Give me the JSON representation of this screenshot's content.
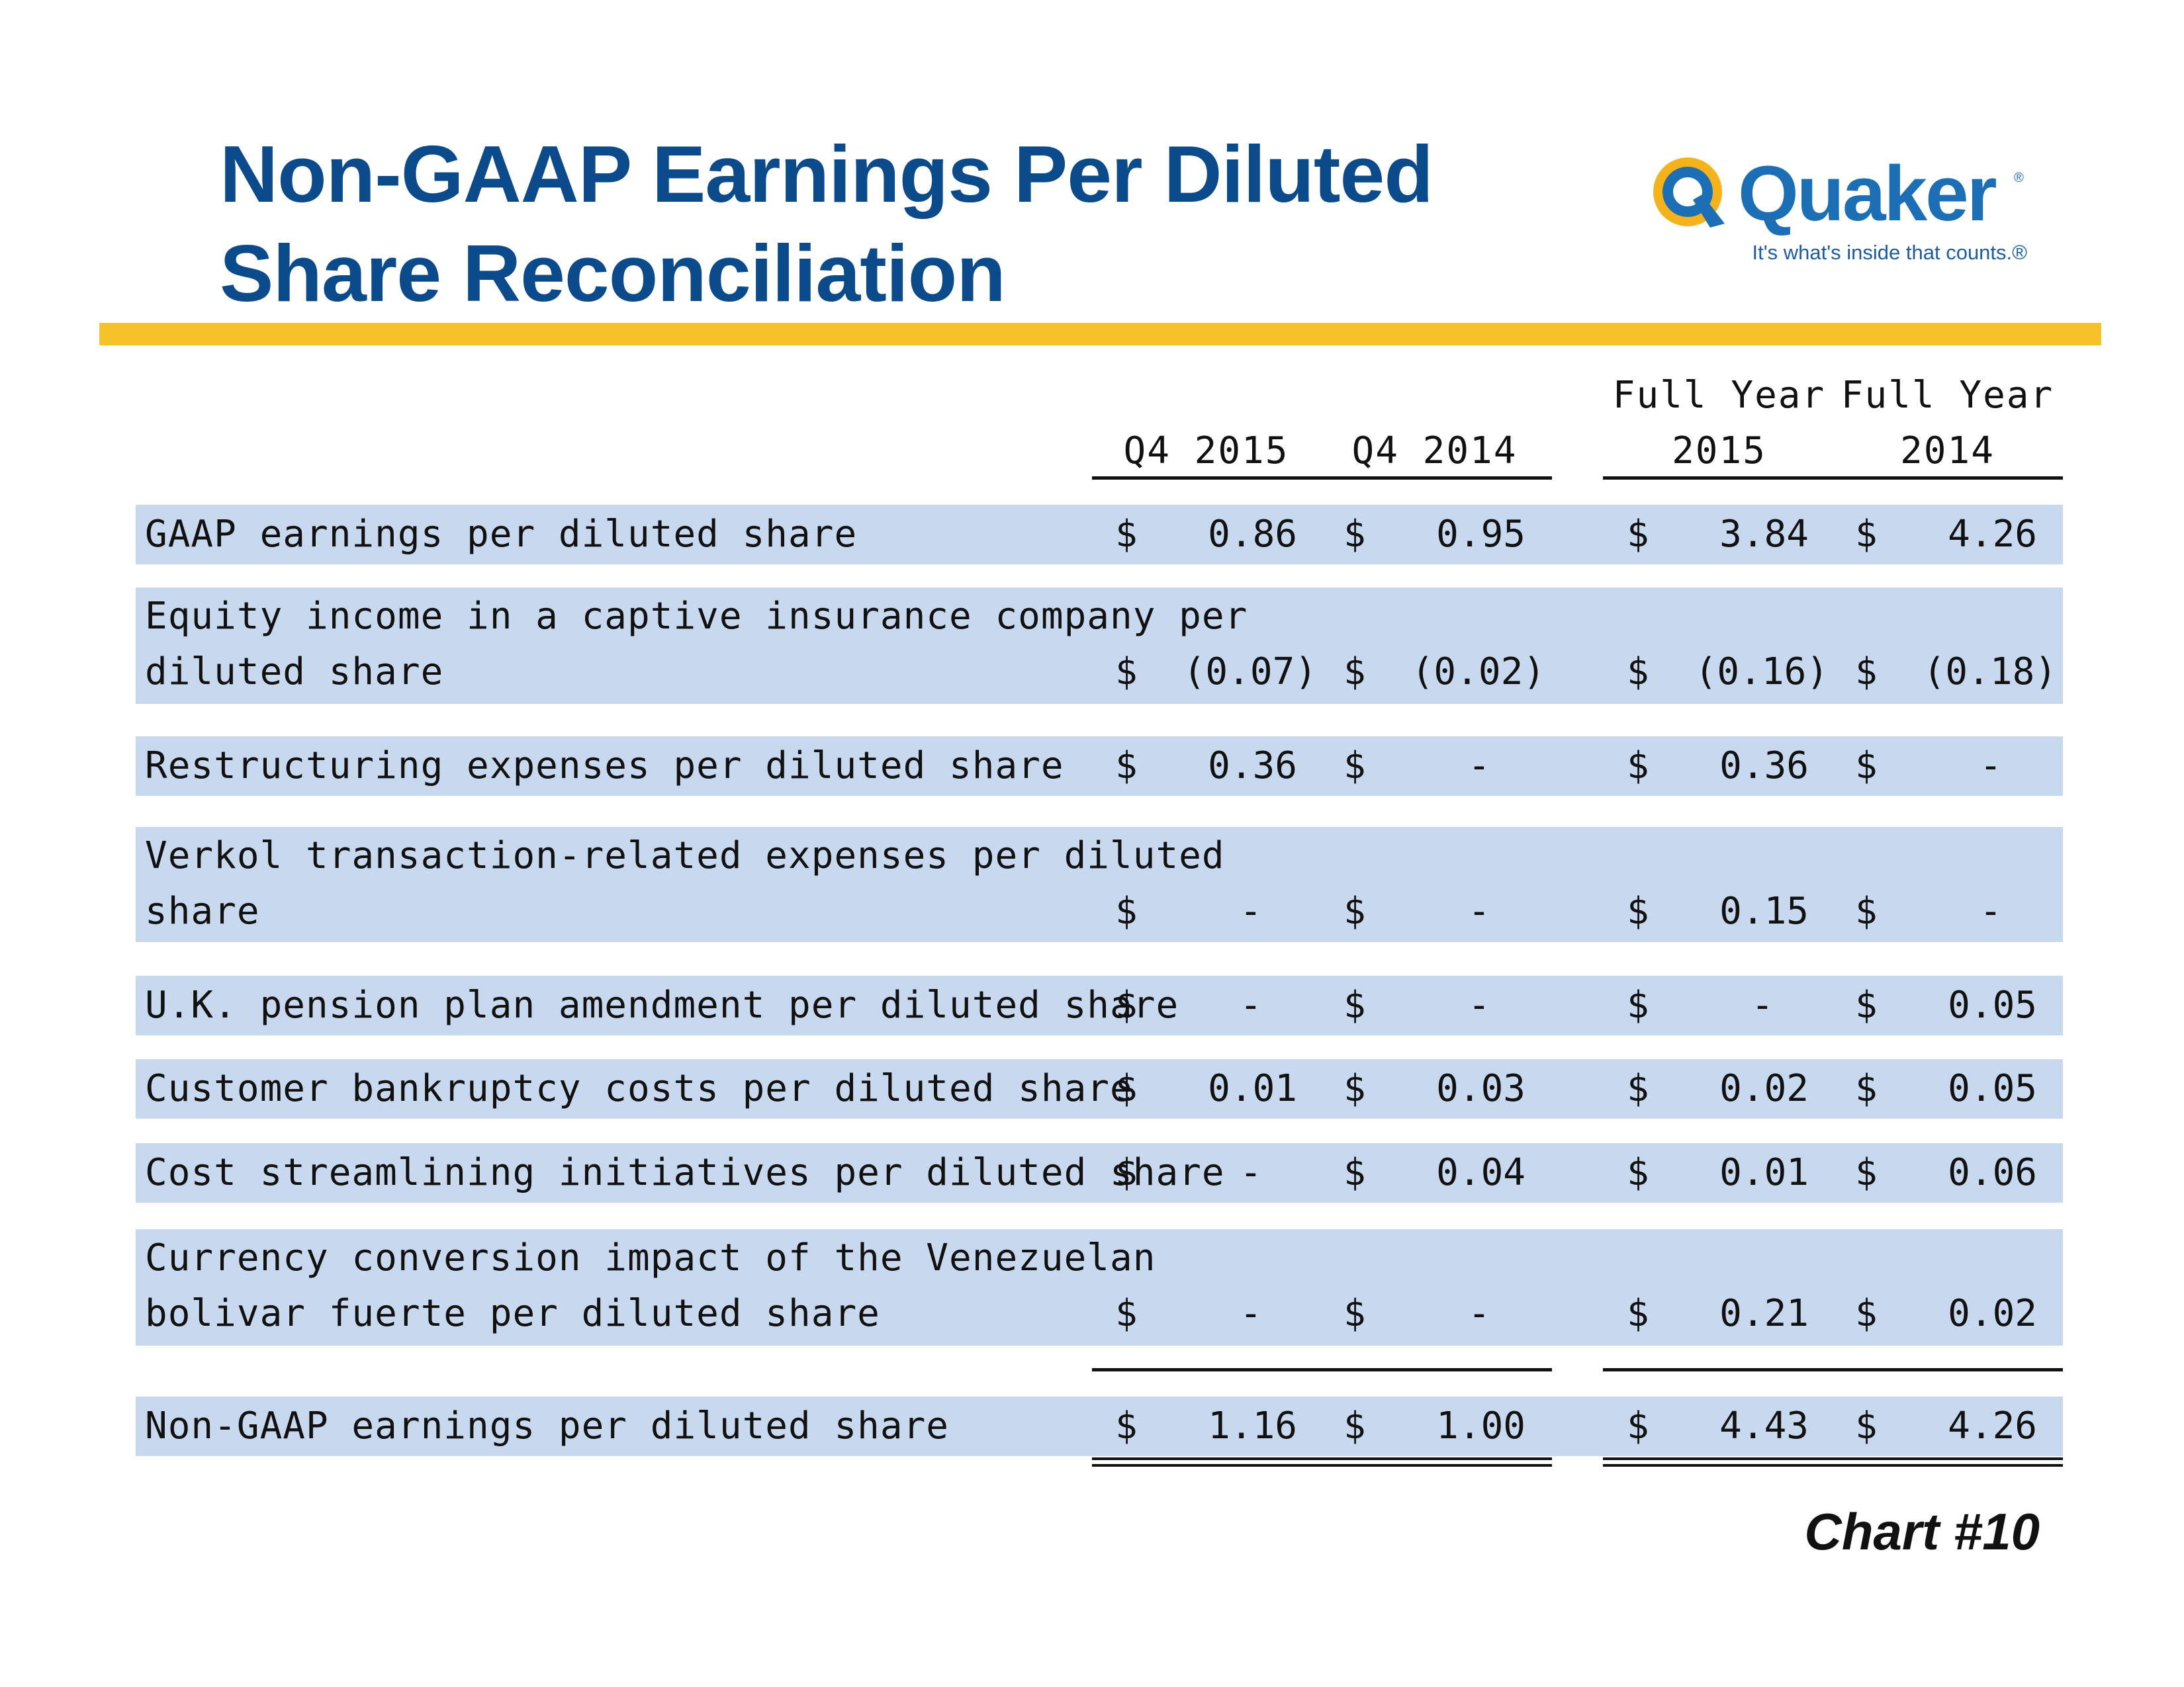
{
  "title": {
    "line1": "Non-GAAP Earnings Per Diluted",
    "line2": "Share Reconciliation"
  },
  "logo": {
    "name": "Quaker",
    "registered": "®",
    "tagline": "It's what's inside that counts.®"
  },
  "columns": {
    "q4_2015": "Q4 2015",
    "q4_2014": "Q4 2014",
    "fy2015_line1": "Full Year",
    "fy2015_line2": "2015",
    "fy2014_line1": "Full Year",
    "fy2014_line2": "2014"
  },
  "rows": [
    {
      "label1": "GAAP earnings per diluted share",
      "label2": "",
      "q4_2015": "0.86",
      "q4_2014": "0.95",
      "fy2015": "3.84",
      "fy2014": "4.26"
    },
    {
      "label1": "Equity income in a captive insurance company per",
      "label2": "diluted share",
      "q4_2015": "(0.07)",
      "q4_2014": "(0.02)",
      "fy2015": "(0.16)",
      "fy2014": "(0.18)"
    },
    {
      "label1": "Restructuring expenses per diluted share",
      "label2": "",
      "q4_2015": "0.36",
      "q4_2014": "-",
      "fy2015": "0.36",
      "fy2014": "-"
    },
    {
      "label1": "Verkol transaction-related expenses per diluted",
      "label2": "share",
      "q4_2015": "-",
      "q4_2014": "-",
      "fy2015": "0.15",
      "fy2014": "-"
    },
    {
      "label1": "U.K. pension plan amendment per diluted share",
      "label2": "",
      "q4_2015": "-",
      "q4_2014": "-",
      "fy2015": "-",
      "fy2014": "0.05"
    },
    {
      "label1": "Customer bankruptcy costs per diluted share",
      "label2": "",
      "q4_2015": "0.01",
      "q4_2014": "0.03",
      "fy2015": "0.02",
      "fy2014": "0.05"
    },
    {
      "label1": "Cost streamlining initiatives per diluted share",
      "label2": "",
      "q4_2015": "-",
      "q4_2014": "0.04",
      "fy2015": "0.01",
      "fy2014": "0.06"
    },
    {
      "label1": "Currency conversion impact of the Venezuelan",
      "label2": "bolivar fuerte per diluted share",
      "q4_2015": "-",
      "q4_2014": "-",
      "fy2015": "0.21",
      "fy2014": "0.02"
    }
  ],
  "total": {
    "label": "Non-GAAP earnings per diluted share",
    "q4_2015": "1.16",
    "q4_2014": "1.00",
    "fy2015": "4.43",
    "fy2014": "4.26"
  },
  "currency_symbol": "$",
  "chart_number": "Chart #10",
  "colors": {
    "title": "#0b4a8b",
    "accent_rule": "#f5c228",
    "row_fill": "#c8d9ef",
    "logo_blue": "#1d6fb5",
    "logo_gold": "#f5b21b"
  }
}
